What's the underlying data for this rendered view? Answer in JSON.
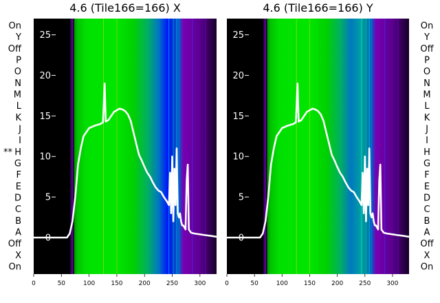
{
  "figure": {
    "left_title": "4.6 (Tile166=166) X",
    "right_title": "4.6 (Tile166=166) Y",
    "row_labels": [
      "On",
      "Y",
      "Off",
      "P",
      "O",
      "N",
      "M",
      "L",
      "K",
      "J",
      "I",
      "H",
      "G",
      "F",
      "E",
      "D",
      "C",
      "B",
      "A",
      "Off",
      "X",
      "On"
    ],
    "marker_label": "**",
    "marker_row": "H"
  },
  "chart_data": [
    {
      "type": "heatmap",
      "title": "4.6 (Tile166=166) X",
      "xlim": [
        0,
        330
      ],
      "ylim": [
        -4.5,
        27
      ],
      "xticks": [
        0,
        50,
        100,
        150,
        200,
        250,
        300
      ],
      "yticks": [
        0,
        5,
        10,
        15,
        20,
        25
      ],
      "grid": false,
      "colormap_stops": [
        {
          "x": 0,
          "color": "#000000"
        },
        {
          "x": 65,
          "color": "#000000"
        },
        {
          "x": 70,
          "color": "#6a00b4"
        },
        {
          "x": 72,
          "color": "#000000"
        },
        {
          "x": 74,
          "color": "#00a000"
        },
        {
          "x": 80,
          "color": "#00c400"
        },
        {
          "x": 95,
          "color": "#00e000"
        },
        {
          "x": 150,
          "color": "#00e600"
        },
        {
          "x": 180,
          "color": "#00d000"
        },
        {
          "x": 205,
          "color": "#00b060"
        },
        {
          "x": 225,
          "color": "#0078c0"
        },
        {
          "x": 243,
          "color": "#0010ff"
        },
        {
          "x": 250,
          "color": "#0030d0"
        },
        {
          "x": 262,
          "color": "#0060c0"
        },
        {
          "x": 270,
          "color": "#7800b4"
        },
        {
          "x": 300,
          "color": "#5a0090"
        },
        {
          "x": 330,
          "color": "#160026"
        }
      ],
      "series": [
        {
          "x": [
            0,
            60,
            65,
            70,
            75,
            80,
            85,
            90,
            100,
            110,
            120,
            125,
            128,
            130,
            135,
            140,
            145,
            150,
            155,
            160,
            165,
            170,
            175,
            180,
            185,
            190,
            195,
            200,
            205,
            210,
            215,
            220,
            225,
            230,
            235,
            240,
            244,
            246,
            248,
            250,
            252,
            254,
            256,
            258,
            260,
            262,
            264,
            266,
            268,
            270,
            274,
            276,
            278,
            280,
            282,
            284,
            290,
            300,
            310,
            320,
            330
          ],
          "y": [
            0,
            0,
            0.5,
            2,
            5,
            9,
            11,
            12.5,
            13.5,
            13.8,
            14,
            14.2,
            19,
            14.3,
            14.5,
            15,
            15.5,
            15.7,
            15.9,
            15.8,
            15.6,
            15.2,
            14.4,
            13,
            11.6,
            10.2,
            9.5,
            8.7,
            8,
            7.5,
            6.8,
            6.2,
            5.8,
            5.6,
            5,
            4.5,
            4,
            8,
            3,
            10,
            2,
            8.5,
            4,
            11,
            3,
            2.5,
            3,
            2,
            1.5,
            1.5,
            1,
            7,
            9,
            1,
            0.8,
            0.6,
            0.5,
            0.4,
            0.3,
            0.2,
            0.1
          ]
        }
      ]
    },
    {
      "type": "heatmap",
      "title": "4.6 (Tile166=166) Y",
      "xlim": [
        0,
        330
      ],
      "ylim": [
        -4.5,
        27
      ],
      "xticks": [
        0,
        50,
        100,
        150,
        200,
        250,
        300
      ],
      "yticks": [
        0,
        5,
        10,
        15,
        20,
        25
      ],
      "grid": false,
      "colormap_stops": [
        {
          "x": 0,
          "color": "#000000"
        },
        {
          "x": 65,
          "color": "#000000"
        },
        {
          "x": 70,
          "color": "#6a00b4"
        },
        {
          "x": 72,
          "color": "#000000"
        },
        {
          "x": 74,
          "color": "#00a000"
        },
        {
          "x": 80,
          "color": "#00c400"
        },
        {
          "x": 95,
          "color": "#00e000"
        },
        {
          "x": 150,
          "color": "#00e600"
        },
        {
          "x": 180,
          "color": "#00d000"
        },
        {
          "x": 205,
          "color": "#00b060"
        },
        {
          "x": 225,
          "color": "#0078c0"
        },
        {
          "x": 243,
          "color": "#00a0a0"
        },
        {
          "x": 250,
          "color": "#009090"
        },
        {
          "x": 262,
          "color": "#0060c0"
        },
        {
          "x": 270,
          "color": "#7800b4"
        },
        {
          "x": 300,
          "color": "#5a0090"
        },
        {
          "x": 330,
          "color": "#160026"
        }
      ],
      "series": [
        {
          "x": [
            0,
            60,
            65,
            70,
            75,
            80,
            85,
            90,
            100,
            110,
            120,
            125,
            128,
            130,
            135,
            140,
            145,
            150,
            155,
            160,
            165,
            170,
            175,
            180,
            185,
            190,
            195,
            200,
            205,
            210,
            215,
            220,
            225,
            230,
            235,
            240,
            244,
            246,
            248,
            250,
            252,
            254,
            256,
            258,
            260,
            262,
            264,
            266,
            268,
            270,
            274,
            276,
            278,
            280,
            282,
            284,
            290,
            300,
            310,
            320,
            330
          ],
          "y": [
            0,
            0,
            0.5,
            2,
            5,
            9,
            11,
            12.5,
            13.5,
            13.8,
            14,
            14.2,
            19,
            14.3,
            14.5,
            15,
            15.5,
            15.7,
            15.9,
            15.8,
            15.6,
            15.2,
            14.4,
            13,
            11.6,
            10.2,
            9.5,
            8.7,
            8,
            7.5,
            6.8,
            6.2,
            5.8,
            5.6,
            5,
            4.5,
            4,
            8,
            3,
            10,
            2,
            8.5,
            4,
            11,
            3,
            2.5,
            3,
            2,
            1.5,
            1.5,
            1,
            7,
            9,
            1,
            0.8,
            0.6,
            0.5,
            0.4,
            0.3,
            0.2,
            0.1
          ]
        }
      ]
    }
  ]
}
